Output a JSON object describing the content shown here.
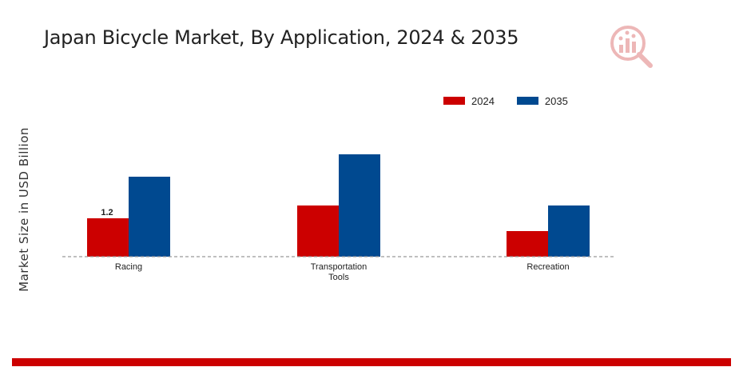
{
  "chart_data": {
    "type": "bar",
    "title": "Japan Bicycle Market, By Application, 2024 & 2035",
    "ylabel": "Market Size in USD Billion",
    "xlabel": "",
    "categories": [
      "Racing",
      "Transportation Tools",
      "Recreation"
    ],
    "category_lines": [
      [
        "Racing"
      ],
      [
        "Transportation",
        "Tools"
      ],
      [
        "Recreation"
      ]
    ],
    "series": [
      {
        "name": "2024",
        "color": "#cc0000",
        "values": [
          1.2,
          1.6,
          0.8
        ]
      },
      {
        "name": "2035",
        "color": "#004990",
        "values": [
          2.5,
          3.2,
          1.6
        ]
      }
    ],
    "data_labels": [
      {
        "series": 0,
        "index": 0,
        "text": "1.2"
      }
    ],
    "ylim": [
      0,
      3.5
    ],
    "grid": false,
    "legend_position": "top-right"
  },
  "colors": {
    "accent_bar": "#cc0000",
    "baseline": "#999999"
  },
  "logo_icon": "market-research-logo-icon"
}
